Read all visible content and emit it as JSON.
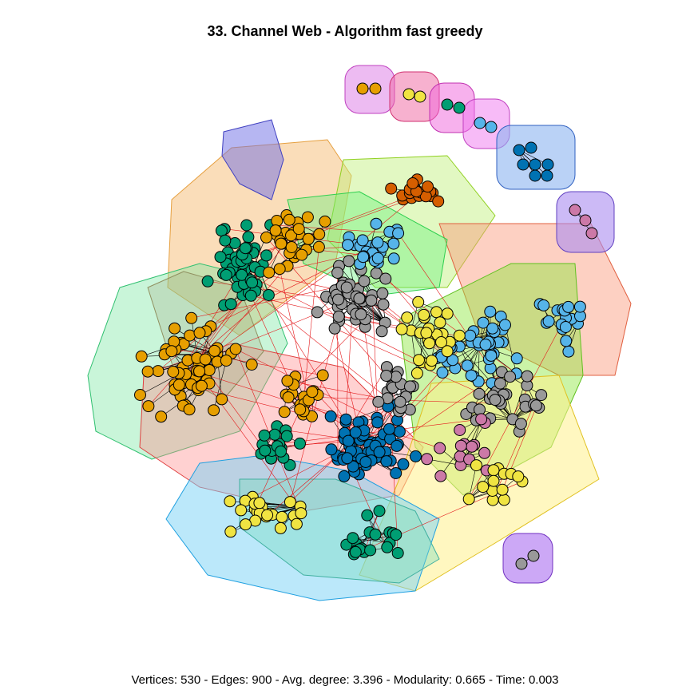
{
  "title": "33. Channel Web - Algorithm fast greedy",
  "footer": "Vertices: 530 - Edges: 900 - Avg. degree: 3.396 - Modularity: 0.665 - Time: 0.003",
  "colors": {
    "vertex_orange": "#E69F00",
    "vertex_green": "#009E73",
    "vertex_lightblue": "#56B4E9",
    "vertex_blue": "#0072B2",
    "vertex_yellow": "#F0E442",
    "vertex_vermillion": "#D55E00",
    "vertex_pink": "#CC79A7",
    "vertex_grey": "#999999",
    "edge_intra": "#000000",
    "edge_inter": "#E41A1C"
  }
}
